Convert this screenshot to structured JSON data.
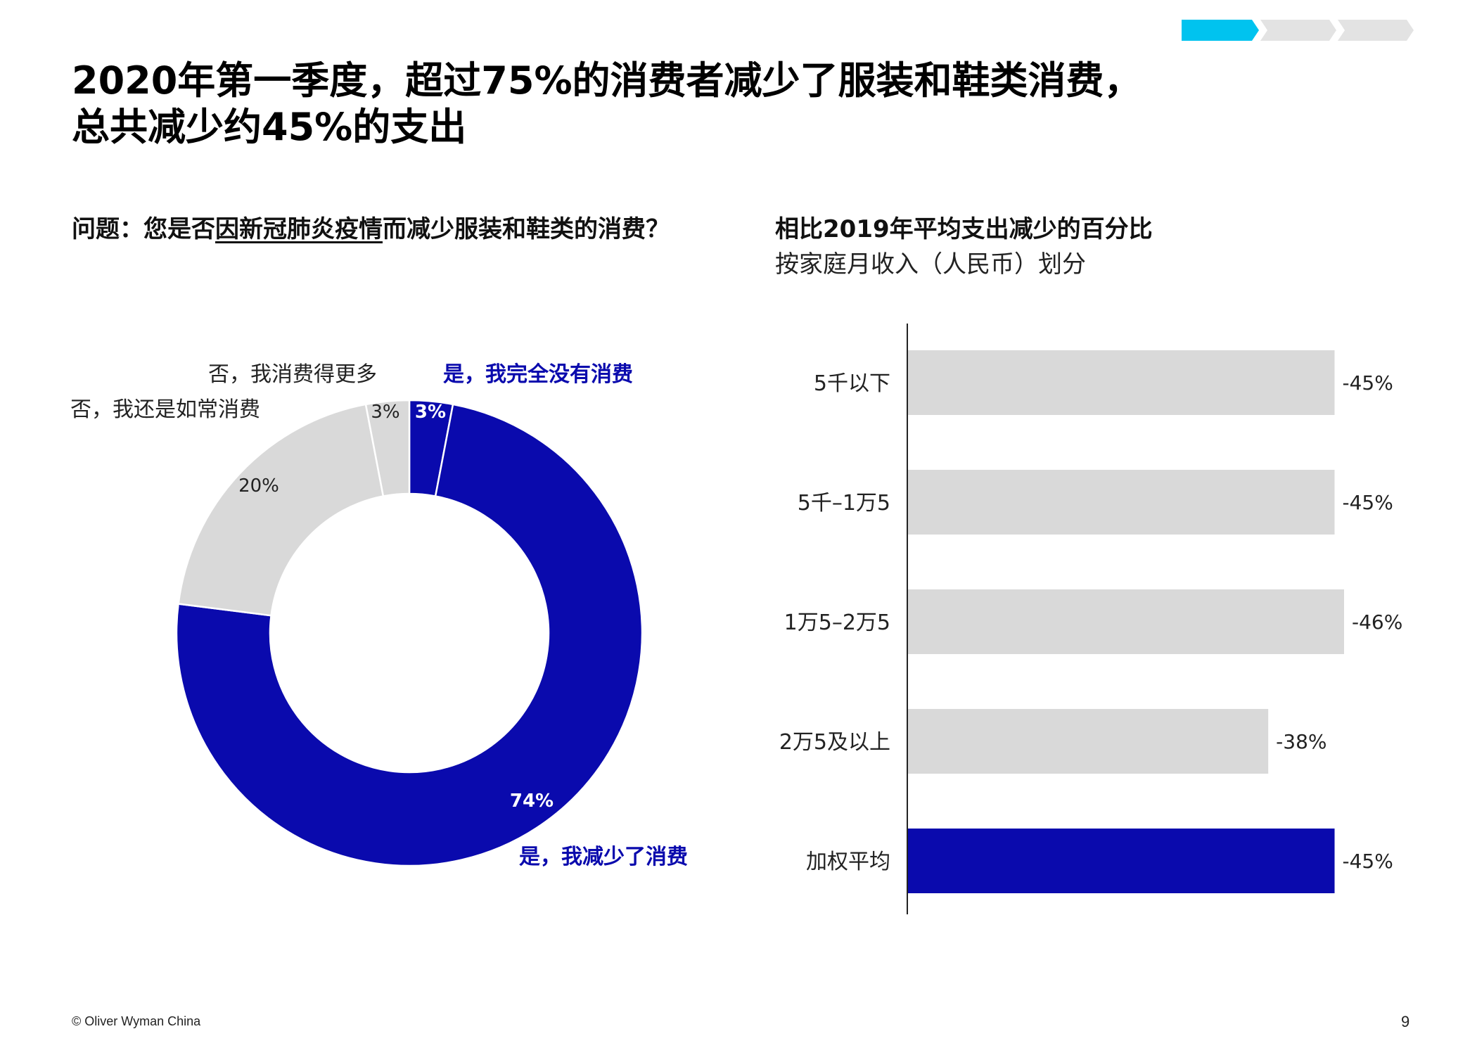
{
  "headline": {
    "line1": "2020年第一季度，超过75%的消费者减少了服装和鞋类消费，",
    "line2": "总共减少约45%的支出"
  },
  "question": {
    "prefix": "问题：您是否",
    "underlined": "因新冠肺炎疫情",
    "suffix": "而减少服装和鞋类的消费？"
  },
  "right_title": {
    "title": "相比2019年平均支出减少的百分比",
    "subtitle": "按家庭月收入（人民币）划分"
  },
  "colors": {
    "blue": "#0a0aad",
    "gray": "#d9d9d9",
    "step_active": "#00c3ef",
    "step_inactive": "#e3e3e3"
  },
  "chart_data": [
    {
      "type": "pie",
      "subtype": "donut",
      "slices": [
        {
          "name": "是，我完全没有消费",
          "value": 3,
          "label": "3%",
          "color": "#0a0aad"
        },
        {
          "name": "是，我减少了消费",
          "value": 74,
          "label": "74%",
          "color": "#0a0aad"
        },
        {
          "name": "否，我还是如常消费",
          "value": 20,
          "label": "20%",
          "color": "#d9d9d9"
        },
        {
          "name": "否，我消费得更多",
          "value": 3,
          "label": "3%",
          "color": "#d9d9d9"
        }
      ]
    },
    {
      "type": "bar",
      "orientation": "horizontal",
      "categories": [
        "5千以下",
        "5千–1万5",
        "1万5–2万5",
        "2万5及以上",
        "加权平均"
      ],
      "values": [
        -45,
        -45,
        -46,
        -38,
        -45
      ],
      "value_labels": [
        "-45%",
        "-45%",
        "-46%",
        "-38%",
        "-45%"
      ],
      "highlight_index": 4,
      "xlim": [
        0,
        -50
      ]
    }
  ],
  "footer": {
    "copyright": "© Oliver Wyman China",
    "page": "9"
  }
}
